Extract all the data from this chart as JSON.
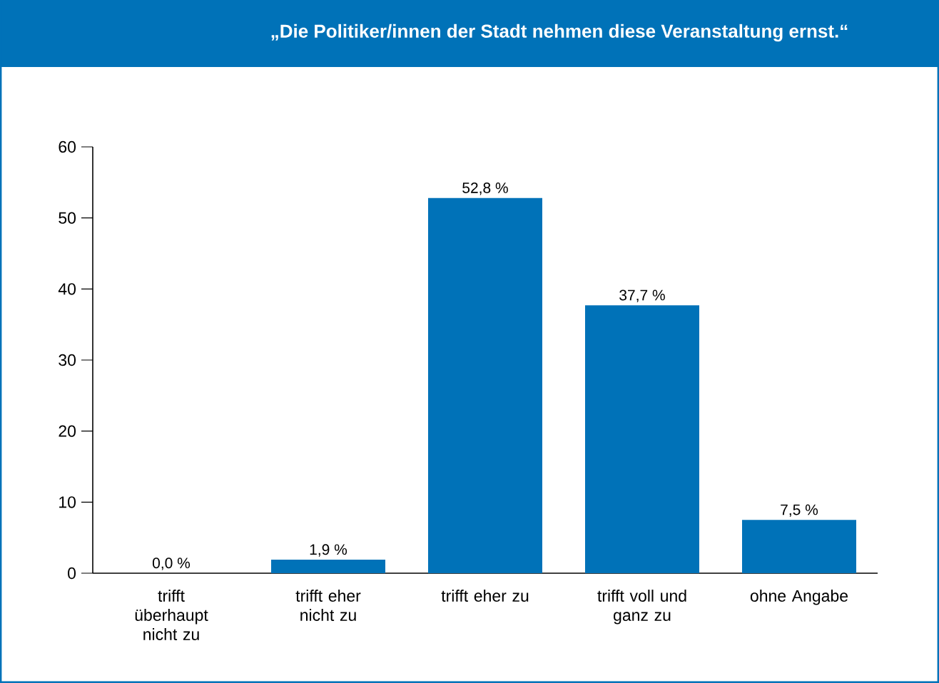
{
  "chart_data": {
    "type": "bar",
    "title": "„Die Politiker/innen der Stadt nehmen diese Veranstaltung ernst.“",
    "categories": [
      "trifft überhaupt nicht zu",
      "trifft eher nicht zu",
      "trifft eher zu",
      "trifft voll und ganz zu",
      "ohne Angabe"
    ],
    "values": [
      0.0,
      1.9,
      52.8,
      37.7,
      7.5
    ],
    "value_labels": [
      "0,0 %",
      "1,9 %",
      "52,8 %",
      "37,7 %",
      "7,5 %"
    ],
    "color": "#0072b8",
    "ylim": [
      0,
      60
    ],
    "yticks": [
      0,
      10,
      20,
      30,
      40,
      50,
      60
    ],
    "grid": false
  }
}
